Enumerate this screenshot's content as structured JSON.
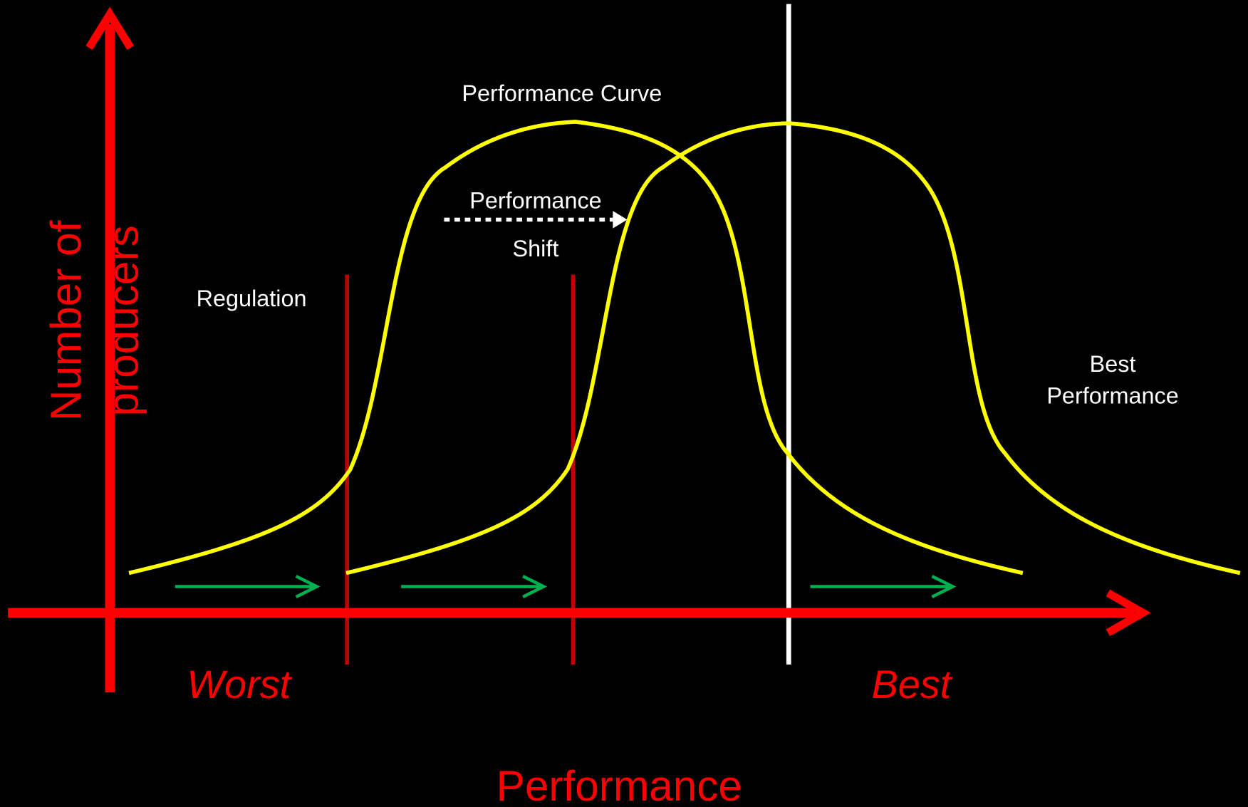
{
  "axes": {
    "y_label": [
      "Number of",
      "producers"
    ],
    "x_label": "Performance",
    "worst": "Worst",
    "best": "Best"
  },
  "labels": {
    "curve": "Performance Curve",
    "shift": [
      "Performance",
      "Shift"
    ],
    "regulation": "Regulation",
    "best_performance": [
      "Best",
      "Performance"
    ]
  }
}
